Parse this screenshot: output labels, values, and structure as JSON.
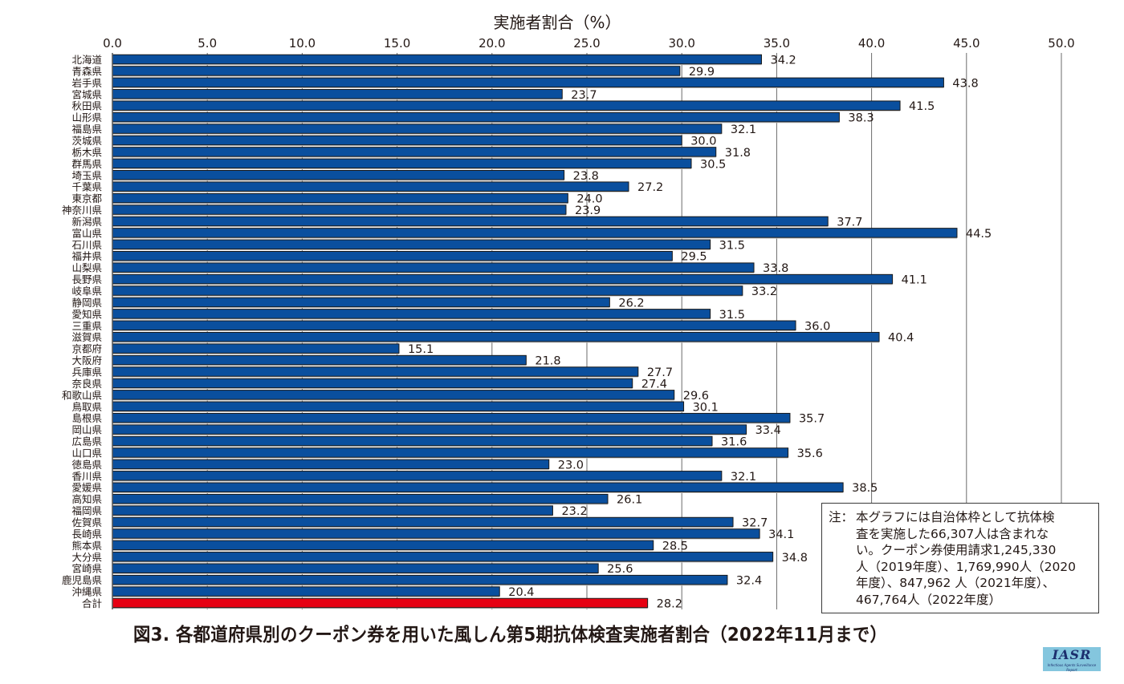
{
  "chart_data": {
    "type": "bar",
    "orientation": "horizontal",
    "title": "図3. 各都道府県別のクーポン券を用いた風しん第5期抗体検査実施者割合（2022年11月まで）",
    "xlabel": "実施者割合（%）",
    "ylabel": "",
    "xlim": [
      0,
      50
    ],
    "x_ticks": [
      "0.0",
      "5.0",
      "10.0",
      "15.0",
      "20.0",
      "25.0",
      "30.0",
      "35.0",
      "40.0",
      "45.0",
      "50.0"
    ],
    "x_tick_values": [
      0,
      5,
      10,
      15,
      20,
      25,
      30,
      35,
      40,
      45,
      50
    ],
    "grid": "vertical",
    "x_axis_position": "top",
    "colors": {
      "prefecture": "#0a4f9e",
      "total": "#e60012"
    },
    "categories": [
      "北海道",
      "青森県",
      "岩手県",
      "宮城県",
      "秋田県",
      "山形県",
      "福島県",
      "茨城県",
      "栃木県",
      "群馬県",
      "埼玉県",
      "千葉県",
      "東京都",
      "神奈川県",
      "新潟県",
      "富山県",
      "石川県",
      "福井県",
      "山梨県",
      "長野県",
      "岐阜県",
      "静岡県",
      "愛知県",
      "三重県",
      "滋賀県",
      "京都府",
      "大阪府",
      "兵庫県",
      "奈良県",
      "和歌山県",
      "鳥取県",
      "島根県",
      "岡山県",
      "広島県",
      "山口県",
      "徳島県",
      "香川県",
      "愛媛県",
      "高知県",
      "福岡県",
      "佐賀県",
      "長崎県",
      "熊本県",
      "大分県",
      "宮崎県",
      "鹿児島県",
      "沖縄県",
      "合計"
    ],
    "values": [
      34.2,
      29.9,
      43.8,
      23.7,
      41.5,
      38.3,
      32.1,
      30.0,
      31.8,
      30.5,
      23.8,
      27.2,
      24.0,
      23.9,
      37.7,
      44.5,
      31.5,
      29.5,
      33.8,
      41.1,
      33.2,
      26.2,
      31.5,
      36.0,
      40.4,
      15.1,
      21.8,
      27.7,
      27.4,
      29.6,
      30.1,
      35.7,
      33.4,
      31.6,
      35.6,
      23.0,
      32.1,
      38.5,
      26.1,
      23.2,
      32.7,
      34.1,
      28.5,
      34.8,
      25.6,
      32.4,
      20.4,
      28.2
    ],
    "data_labels": [
      "34.2",
      "29.9",
      "43.8",
      "23.7",
      "41.5",
      "38.3",
      "32.1",
      "30.0",
      "31.8",
      "30.5",
      "23.8",
      "27.2",
      "24.0",
      "23.9",
      "37.7",
      "44.5",
      "31.5",
      "29.5",
      "33.8",
      "41.1",
      "33.2",
      "26.2",
      "31.5",
      "36.0",
      "40.4",
      "15.1",
      "21.8",
      "27.7",
      "27.4",
      "29.6",
      "30.1",
      "35.7",
      "33.4",
      "31.6",
      "35.6",
      "23.0",
      "32.1",
      "38.5",
      "26.1",
      "23.2",
      "32.7",
      "34.1",
      "28.5",
      "34.8",
      "25.6",
      "32.4",
      "20.4",
      "28.2"
    ],
    "highlight_category": "合計"
  },
  "note": {
    "label": "注：",
    "text": "本グラフには自治体枠として抗体検\n査を実施した66,307人は含まれな\nい。クーポン券使用請求1,245,330\n人（2019年度）、1,769,990人（2020\n年度）、847,962 人（2021年度）、\n467,764人（2022年度）"
  },
  "logo": {
    "main": "IASR",
    "sub": "Infectious Agents Surveillance Report"
  }
}
